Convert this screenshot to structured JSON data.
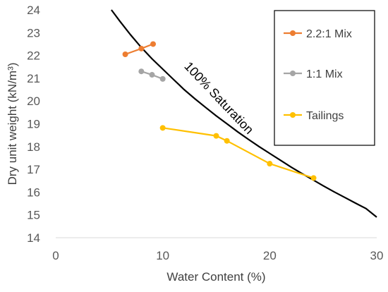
{
  "chart_data": {
    "type": "scatter",
    "xlabel": "Water Content (%)",
    "ylabel": "Dry unit weight (kN/m³)",
    "xlim": [
      0,
      30
    ],
    "ylim": [
      14,
      24
    ],
    "x_ticks": [
      0,
      10,
      20,
      30
    ],
    "y_ticks": [
      14,
      15,
      16,
      17,
      18,
      19,
      20,
      21,
      22,
      23,
      24
    ],
    "grid": false,
    "legend_position": "right",
    "series": [
      {
        "name": "2.2:1 Mix",
        "color": "#ED7D31",
        "x": [
          6.5,
          8.0,
          9.1
        ],
        "y": [
          22.05,
          22.3,
          22.5
        ]
      },
      {
        "name": "1:1 Mix",
        "color": "#A5A5A5",
        "x": [
          8.0,
          9.0,
          10.0
        ],
        "y": [
          21.3,
          21.15,
          20.97
        ]
      },
      {
        "name": "Tailings",
        "color": "#FFC000",
        "x": [
          10.0,
          15.0,
          16.0,
          20.0,
          24.1
        ],
        "y": [
          18.82,
          18.47,
          18.25,
          17.25,
          16.62
        ]
      }
    ],
    "saturation_curve": {
      "label": "100% Saturation",
      "color": "#000000",
      "x": [
        5.2,
        6,
        7,
        8,
        9,
        10,
        11,
        12,
        13,
        14,
        15,
        16,
        17,
        18,
        19,
        20,
        21,
        22,
        23,
        24,
        25,
        26,
        27,
        28,
        29,
        30
      ],
      "y": [
        24.0,
        23.5,
        22.9,
        22.35,
        21.85,
        21.4,
        20.95,
        20.5,
        20.1,
        19.72,
        19.35,
        19.0,
        18.65,
        18.32,
        18.0,
        17.7,
        17.4,
        17.1,
        16.82,
        16.55,
        16.28,
        16.02,
        15.77,
        15.52,
        15.28,
        14.9
      ]
    }
  }
}
